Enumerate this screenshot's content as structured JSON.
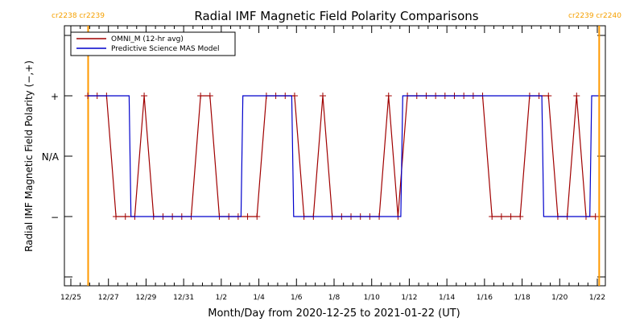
{
  "chart_data": {
    "type": "line",
    "title": "Radial IMF Magnetic Field Polarity Comparisons",
    "xlabel": "Month/Day from 2020-12-25 to 2021-01-22 (UT)",
    "ylabel": "Radial IMF Magnetic Field Polarity (−,+)",
    "x_unit": "days since 2020-12-25 00:00 UT",
    "xlim": [
      0,
      28
    ],
    "x_ticks": [
      {
        "x": 0,
        "label": "12/25"
      },
      {
        "x": 2,
        "label": "12/27"
      },
      {
        "x": 4,
        "label": "12/29"
      },
      {
        "x": 6,
        "label": "12/31"
      },
      {
        "x": 8,
        "label": "1/2"
      },
      {
        "x": 10,
        "label": "1/4"
      },
      {
        "x": 12,
        "label": "1/6"
      },
      {
        "x": 14,
        "label": "1/8"
      },
      {
        "x": 16,
        "label": "1/10"
      },
      {
        "x": 18,
        "label": "1/12"
      },
      {
        "x": 20,
        "label": "1/14"
      },
      {
        "x": 22,
        "label": "1/16"
      },
      {
        "x": 24,
        "label": "1/18"
      },
      {
        "x": 26,
        "label": "1/20"
      },
      {
        "x": 28,
        "label": "1/22"
      }
    ],
    "y_levels": [
      {
        "y": 1,
        "label": "+"
      },
      {
        "y": 0,
        "label": "N/A"
      },
      {
        "y": -1,
        "label": "−"
      }
    ],
    "ylim": [
      -2,
      2
    ],
    "grid": false,
    "legend_position": "top-left",
    "carrington_markers": [
      {
        "x": 0.92,
        "label": "cr2238 cr2239",
        "label_side": "left"
      },
      {
        "x": 28.1,
        "label": "cr2239 cr2240",
        "label_side": "right"
      }
    ],
    "series": [
      {
        "name": "OMNI_M (12-hr avg)",
        "color": "#a00000",
        "style": "line-with-plus-markers",
        "x": [
          0.9,
          1.4,
          1.9,
          2.4,
          2.9,
          3.4,
          3.9,
          4.4,
          4.9,
          5.4,
          5.9,
          6.4,
          6.9,
          7.4,
          7.9,
          8.4,
          8.9,
          9.4,
          9.9,
          10.4,
          10.9,
          11.4,
          11.9,
          12.4,
          12.9,
          13.4,
          13.9,
          14.4,
          14.9,
          15.4,
          15.9,
          16.4,
          16.9,
          17.4,
          17.9,
          18.4,
          18.9,
          19.4,
          19.9,
          20.4,
          20.9,
          21.4,
          21.9,
          22.4,
          22.9,
          23.4,
          23.9,
          24.4,
          24.9,
          25.4,
          25.9,
          26.4,
          26.9,
          27.4,
          27.9
        ],
        "y": [
          1,
          1,
          1,
          -1,
          -1,
          -1,
          1,
          -1,
          -1,
          -1,
          -1,
          -1,
          1,
          1,
          -1,
          -1,
          -1,
          -1,
          -1,
          1,
          1,
          1,
          1,
          -1,
          -1,
          1,
          -1,
          -1,
          -1,
          -1,
          -1,
          -1,
          1,
          -1,
          1,
          1,
          1,
          1,
          1,
          1,
          1,
          1,
          1,
          -1,
          -1,
          -1,
          -1,
          1,
          1,
          1,
          -1,
          -1,
          1,
          -1,
          -1
        ]
      },
      {
        "name": "Predictive Science MAS Model",
        "color": "#0000cc",
        "style": "step",
        "x": [
          0.9,
          3.1,
          3.2,
          9.05,
          9.15,
          11.75,
          11.85,
          17.55,
          17.65,
          25.05,
          25.15,
          27.6,
          27.7,
          28.05
        ],
        "y": [
          1,
          1,
          -1,
          -1,
          1,
          1,
          -1,
          -1,
          1,
          1,
          -1,
          -1,
          1,
          1
        ]
      }
    ]
  }
}
